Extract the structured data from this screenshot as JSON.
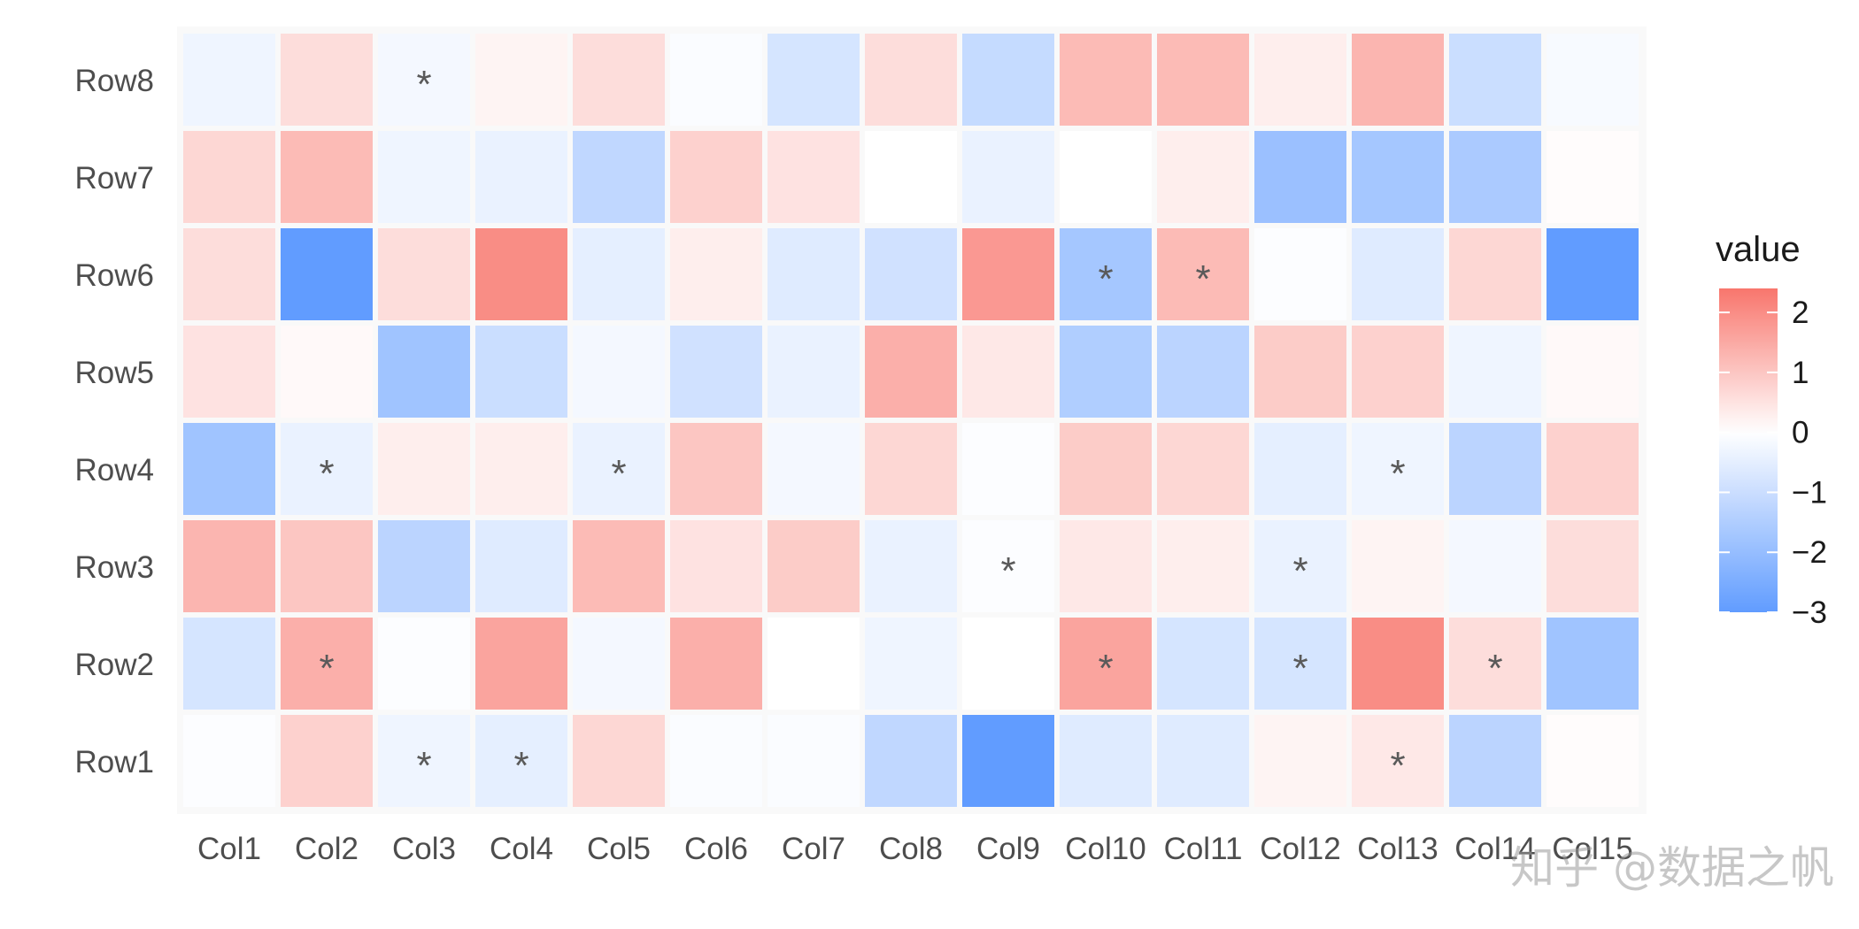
{
  "chart_data": {
    "type": "heatmap",
    "rows": [
      "Row1",
      "Row2",
      "Row3",
      "Row4",
      "Row5",
      "Row6",
      "Row7",
      "Row8"
    ],
    "columns": [
      "Col1",
      "Col2",
      "Col3",
      "Col4",
      "Col5",
      "Col6",
      "Col7",
      "Col8",
      "Col9",
      "Col10",
      "Col11",
      "Col12",
      "Col13",
      "Col14",
      "Col15"
    ],
    "values": [
      [
        -0.05,
        0.8,
        -0.3,
        -0.5,
        0.7,
        -0.1,
        -0.1,
        -1.2,
        -3.0,
        -0.6,
        -0.6,
        0.2,
        0.4,
        -1.3,
        0.05
      ],
      [
        -0.8,
        1.4,
        -0.05,
        1.6,
        -0.2,
        1.4,
        0.0,
        -0.3,
        0.0,
        1.6,
        -0.8,
        -0.8,
        2.0,
        0.6,
        -1.8
      ],
      [
        1.3,
        1.0,
        -1.3,
        -0.6,
        1.2,
        0.5,
        0.9,
        -0.4,
        -0.05,
        0.4,
        0.3,
        -0.4,
        0.2,
        -0.2,
        0.6
      ],
      [
        -1.8,
        -0.4,
        0.3,
        0.3,
        -0.4,
        1.0,
        -0.2,
        0.7,
        -0.05,
        0.9,
        0.7,
        -0.5,
        -0.3,
        -1.3,
        0.8
      ],
      [
        0.5,
        0.1,
        -1.8,
        -1.0,
        -0.2,
        -0.9,
        -0.4,
        1.4,
        0.4,
        -1.5,
        -1.3,
        0.9,
        0.8,
        -0.3,
        0.1
      ],
      [
        0.6,
        -3.0,
        0.6,
        2.0,
        -0.5,
        0.3,
        -0.6,
        -0.9,
        1.8,
        -1.7,
        1.2,
        -0.05,
        -0.6,
        0.7,
        -3.0
      ],
      [
        0.7,
        1.2,
        -0.3,
        -0.4,
        -1.2,
        0.8,
        0.5,
        0.0,
        -0.4,
        0.0,
        0.3,
        -1.9,
        -1.7,
        -1.6,
        0.05
      ],
      [
        -0.3,
        0.6,
        -0.2,
        0.2,
        0.6,
        -0.1,
        -0.8,
        0.6,
        -1.1,
        1.2,
        1.2,
        0.3,
        1.3,
        -1.0,
        -0.15
      ]
    ],
    "significance": [
      [
        "",
        "",
        "*",
        "*",
        "",
        "",
        "",
        "",
        "",
        "",
        "",
        "",
        "*",
        "",
        ""
      ],
      [
        "",
        "*",
        "",
        "",
        "",
        "",
        "",
        "",
        "",
        "*",
        "",
        "*",
        "",
        "*",
        ""
      ],
      [
        "",
        "",
        "",
        "",
        "",
        "",
        "",
        "",
        "*",
        "",
        "",
        "*",
        "",
        "",
        ""
      ],
      [
        "",
        "*",
        "",
        "",
        "*",
        "",
        "",
        "",
        "",
        "",
        "",
        "",
        "*",
        "",
        ""
      ],
      [
        "",
        "",
        "",
        "",
        "",
        "",
        "",
        "",
        "",
        "",
        "",
        "",
        "",
        "",
        ""
      ],
      [
        "",
        "",
        "",
        "",
        "",
        "",
        "",
        "",
        "",
        "*",
        "*",
        "",
        "",
        "",
        ""
      ],
      [
        "",
        "",
        "",
        "",
        "",
        "",
        "",
        "",
        "",
        "",
        "",
        "",
        "",
        "",
        ""
      ],
      [
        "",
        "",
        "*",
        "",
        "",
        "",
        "",
        "",
        "",
        "",
        "",
        "",
        "",
        "",
        ""
      ]
    ],
    "color_scale": {
      "low": "#619CFF",
      "mid": "#FFFFFF",
      "high": "#F8766D",
      "limits": [
        -3,
        2.4
      ],
      "midpoint": 0
    },
    "legend": {
      "title": "value",
      "ticks": [
        "2",
        "1",
        "0",
        "−1",
        "−2",
        "−3"
      ],
      "tick_values": [
        2,
        1,
        0,
        -1,
        -2,
        -3
      ]
    },
    "border_color": "#F7F7F7",
    "background_color": "#F5F5F5"
  },
  "watermark": "知乎 @数据之帆"
}
